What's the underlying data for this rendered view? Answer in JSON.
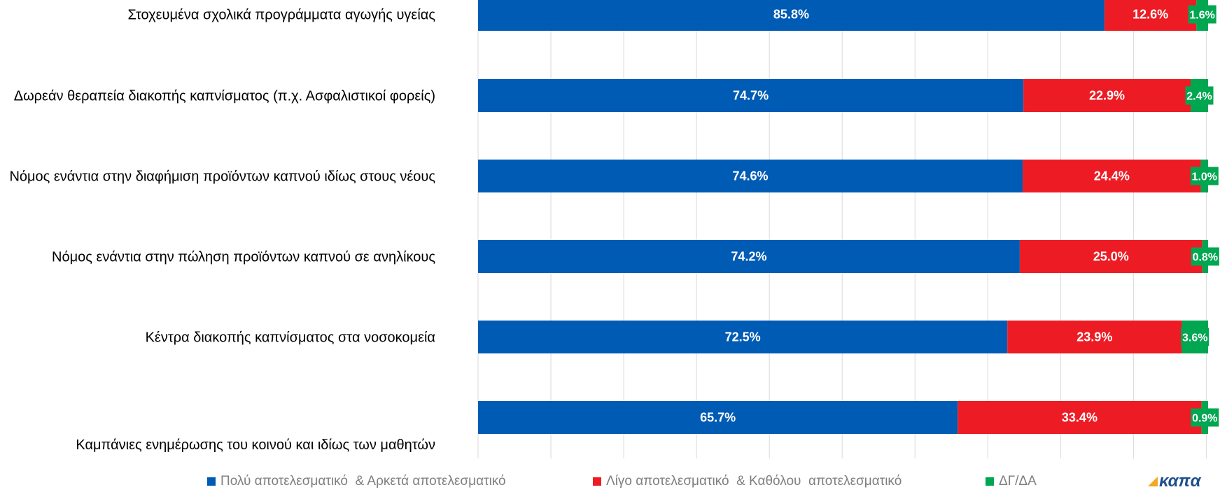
{
  "chart_data": {
    "type": "bar",
    "orientation": "horizontal",
    "stacked": true,
    "categories": [
      "Στοχευμένα σχολικά προγράμματα αγωγής υγείας",
      "Δωρεάν θεραπεία διακοπής καπνίσματος (π.χ. Ασφαλιστικοί φορείς)",
      "Νόμος ενάντια στην διαφήμιση προϊόντων καπνού ιδίως στους νέους",
      "Νόμος ενάντια στην πώληση προϊόντων καπνού σε ανηλίκους",
      "Κέντρα διακοπής καπνίσματος στα νοσοκομεία",
      "Καμπάνιες ενημέρωσης του κοινού και ιδίως των μαθητών"
    ],
    "series": [
      {
        "name": "Πολύ αποτελεσματικό  & Αρκετά αποτελεσματικό",
        "color": "#005bb5",
        "values": [
          85.8,
          74.7,
          74.6,
          74.2,
          72.5,
          65.7
        ],
        "labels": [
          "85.8%",
          "74.7%",
          "74.6%",
          "74.2%",
          "72.5%",
          "65.7%"
        ]
      },
      {
        "name": "Λίγο αποτελεσματικό  & Καθόλου  αποτελεσματικό",
        "color": "#ed1c24",
        "values": [
          12.6,
          22.9,
          24.4,
          25.0,
          23.9,
          33.4
        ],
        "labels": [
          "12.6%",
          "22.9%",
          "24.4%",
          "25.0%",
          "23.9%",
          "33.4%"
        ]
      },
      {
        "name": "ΔΓ/ΔΑ",
        "color": "#00a650",
        "values": [
          1.6,
          2.4,
          1.0,
          0.8,
          3.6,
          0.9
        ],
        "labels": [
          "1.6%",
          "2.4%",
          "1.0%",
          "0.8%",
          "3.6%",
          "0.9%"
        ]
      }
    ],
    "xlim": [
      0,
      100
    ],
    "grid": true,
    "legend_position": "bottom"
  },
  "logo_text": "καπα"
}
